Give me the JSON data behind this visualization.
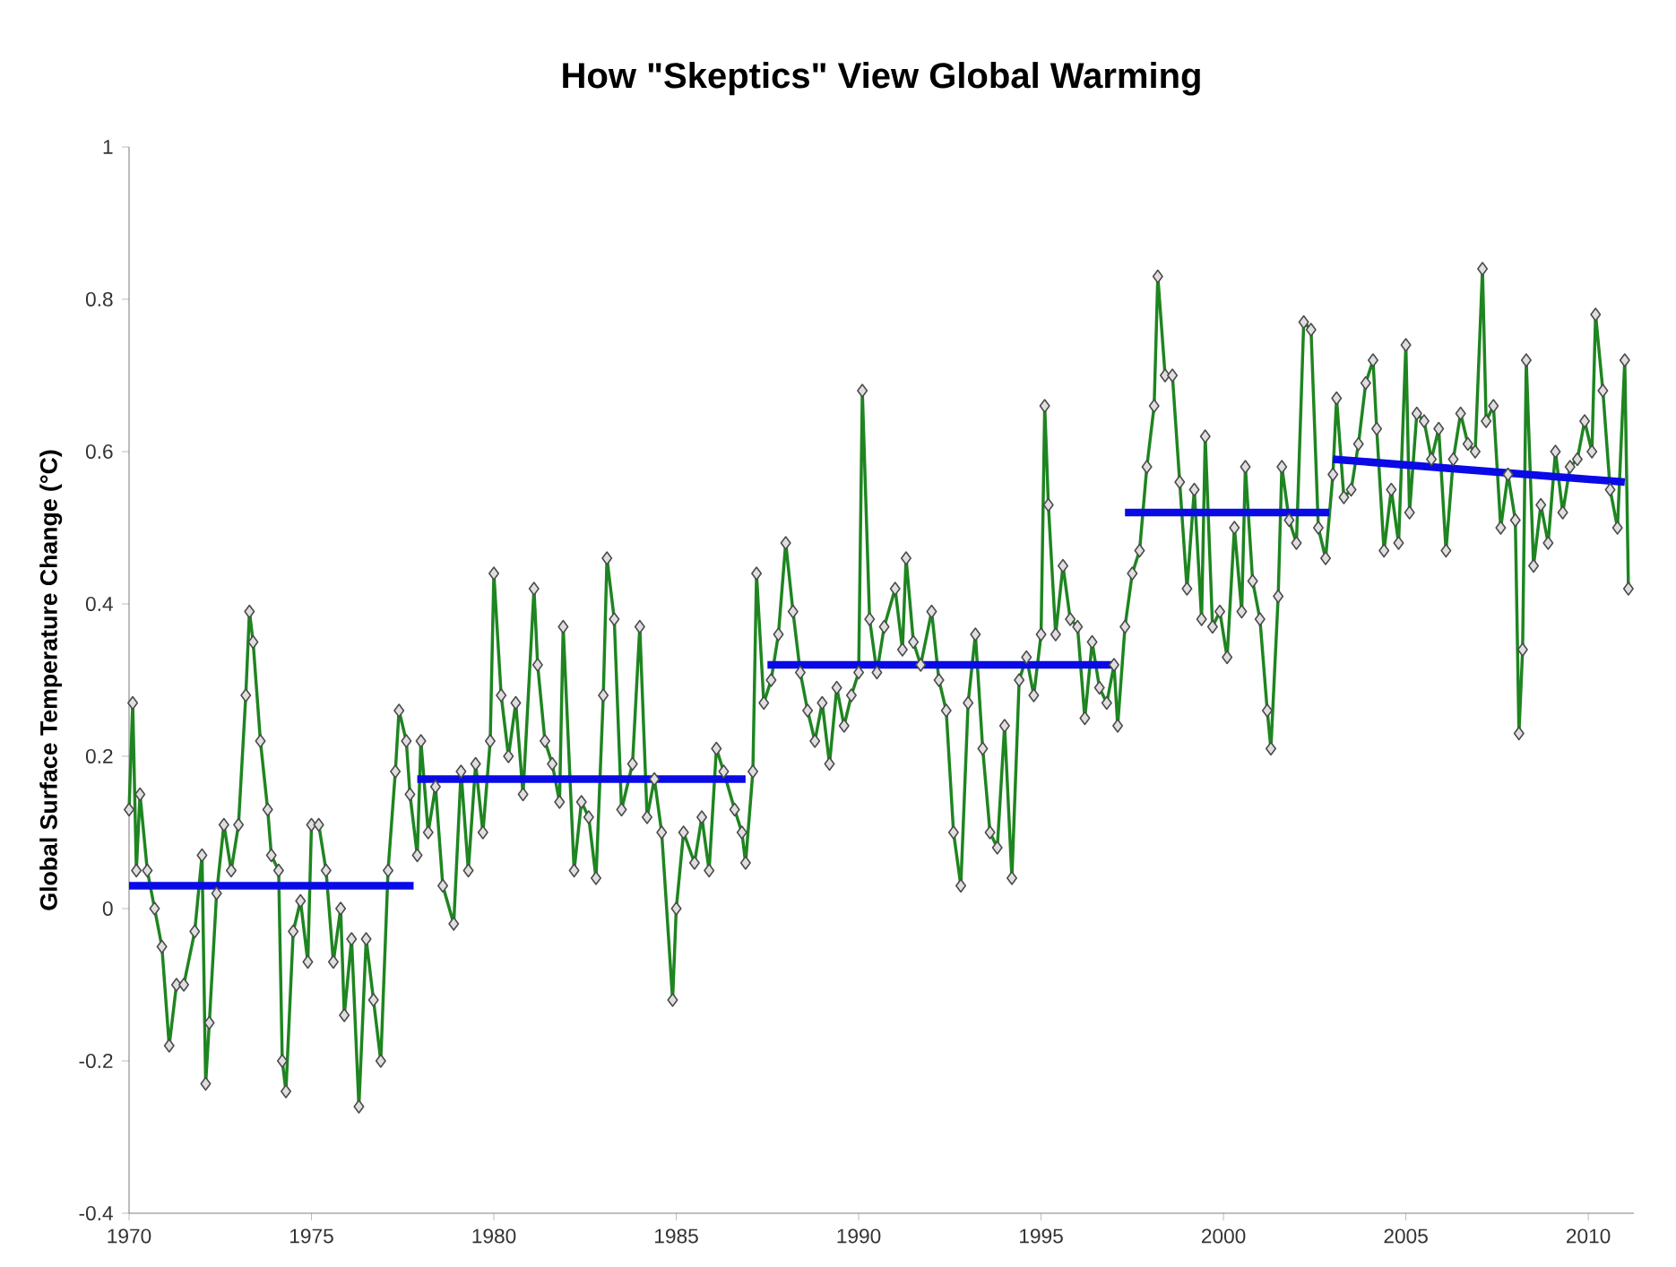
{
  "chart_data": {
    "type": "line",
    "title": "How \"Skeptics\" View Global Warming",
    "ylabel": "Global Surface Temperature Change (°C)",
    "xlim": [
      1970,
      2011.25
    ],
    "xticks": [
      1970,
      1975,
      1980,
      1985,
      1990,
      1995,
      2000,
      2005,
      2010
    ],
    "ylim": [
      -0.4,
      1
    ],
    "yticks": [
      -0.4,
      -0.2,
      0,
      0.2,
      0.4,
      0.6,
      0.8,
      1
    ],
    "series": [
      {
        "color": "#1e8520",
        "marker": "diamond",
        "line_style": "solid",
        "x": [
          1970.0,
          1970.1,
          1970.2,
          1970.3,
          1970.5,
          1970.7,
          1970.9,
          1971.1,
          1971.3,
          1971.5,
          1971.8,
          1972.0,
          1972.1,
          1972.2,
          1972.4,
          1972.6,
          1972.8,
          1973.0,
          1973.2,
          1973.3,
          1973.4,
          1973.6,
          1973.8,
          1973.9,
          1974.1,
          1974.2,
          1974.3,
          1974.5,
          1974.7,
          1974.9,
          1975.0,
          1975.2,
          1975.4,
          1975.6,
          1975.8,
          1975.9,
          1976.1,
          1976.3,
          1976.5,
          1976.7,
          1976.9,
          1977.1,
          1977.3,
          1977.4,
          1977.6,
          1977.7,
          1977.9,
          1978.0,
          1978.2,
          1978.4,
          1978.6,
          1978.9,
          1979.1,
          1979.3,
          1979.5,
          1979.7,
          1979.9,
          1980.0,
          1980.2,
          1980.4,
          1980.6,
          1980.8,
          1981.1,
          1981.2,
          1981.4,
          1981.6,
          1981.8,
          1981.9,
          1982.2,
          1982.4,
          1982.6,
          1982.8,
          1983.0,
          1983.1,
          1983.3,
          1983.5,
          1983.8,
          1984.0,
          1984.2,
          1984.4,
          1984.6,
          1984.9,
          1985.0,
          1985.2,
          1985.5,
          1985.7,
          1985.9,
          1986.1,
          1986.3,
          1986.6,
          1986.8,
          1986.9,
          1987.1,
          1987.2,
          1987.4,
          1987.6,
          1987.8,
          1988.0,
          1988.2,
          1988.4,
          1988.6,
          1988.8,
          1989.0,
          1989.2,
          1989.4,
          1989.6,
          1989.8,
          1990.0,
          1990.1,
          1990.3,
          1990.5,
          1990.7,
          1991.0,
          1991.2,
          1991.3,
          1991.5,
          1991.7,
          1992.0,
          1992.2,
          1992.4,
          1992.6,
          1992.8,
          1993.0,
          1993.2,
          1993.4,
          1993.6,
          1993.8,
          1994.0,
          1994.2,
          1994.4,
          1994.6,
          1994.8,
          1995.0,
          1995.1,
          1995.2,
          1995.4,
          1995.6,
          1995.8,
          1996.0,
          1996.2,
          1996.4,
          1996.6,
          1996.8,
          1997.0,
          1997.1,
          1997.3,
          1997.5,
          1997.7,
          1997.9,
          1998.1,
          1998.2,
          1998.4,
          1998.6,
          1998.8,
          1999.0,
          1999.2,
          1999.4,
          1999.5,
          1999.7,
          1999.9,
          2000.1,
          2000.3,
          2000.5,
          2000.6,
          2000.8,
          2001.0,
          2001.2,
          2001.3,
          2001.5,
          2001.6,
          2001.8,
          2002.0,
          2002.2,
          2002.4,
          2002.6,
          2002.8,
          2003.0,
          2003.1,
          2003.3,
          2003.5,
          2003.7,
          2003.9,
          2004.1,
          2004.2,
          2004.4,
          2004.6,
          2004.8,
          2005.0,
          2005.1,
          2005.3,
          2005.5,
          2005.7,
          2005.9,
          2006.1,
          2006.3,
          2006.5,
          2006.7,
          2006.9,
          2007.1,
          2007.2,
          2007.4,
          2007.6,
          2007.8,
          2008.0,
          2008.1,
          2008.2,
          2008.3,
          2008.5,
          2008.7,
          2008.9,
          2009.1,
          2009.3,
          2009.5,
          2009.7,
          2009.9,
          2010.1,
          2010.2,
          2010.4,
          2010.6,
          2010.8,
          2011.0,
          2011.1
        ],
        "values": [
          0.13,
          0.27,
          0.05,
          0.15,
          0.05,
          0.0,
          -0.05,
          -0.18,
          -0.1,
          -0.1,
          -0.03,
          0.07,
          -0.23,
          -0.15,
          0.02,
          0.11,
          0.05,
          0.11,
          0.28,
          0.39,
          0.35,
          0.22,
          0.13,
          0.07,
          0.05,
          -0.2,
          -0.24,
          -0.03,
          0.01,
          -0.07,
          0.11,
          0.11,
          0.05,
          -0.07,
          0.0,
          -0.14,
          -0.04,
          -0.26,
          -0.04,
          -0.12,
          -0.2,
          0.05,
          0.18,
          0.26,
          0.22,
          0.15,
          0.07,
          0.22,
          0.1,
          0.16,
          0.03,
          -0.02,
          0.18,
          0.05,
          0.19,
          0.1,
          0.22,
          0.44,
          0.28,
          0.2,
          0.27,
          0.15,
          0.42,
          0.32,
          0.22,
          0.19,
          0.14,
          0.37,
          0.05,
          0.14,
          0.12,
          0.04,
          0.28,
          0.46,
          0.38,
          0.13,
          0.19,
          0.37,
          0.12,
          0.17,
          0.1,
          -0.12,
          0.0,
          0.1,
          0.06,
          0.12,
          0.05,
          0.21,
          0.18,
          0.13,
          0.1,
          0.06,
          0.18,
          0.44,
          0.27,
          0.3,
          0.36,
          0.48,
          0.39,
          0.31,
          0.26,
          0.22,
          0.27,
          0.19,
          0.29,
          0.24,
          0.28,
          0.31,
          0.68,
          0.38,
          0.31,
          0.37,
          0.42,
          0.34,
          0.46,
          0.35,
          0.32,
          0.39,
          0.3,
          0.26,
          0.1,
          0.03,
          0.27,
          0.36,
          0.21,
          0.1,
          0.08,
          0.24,
          0.04,
          0.3,
          0.33,
          0.28,
          0.36,
          0.66,
          0.53,
          0.36,
          0.45,
          0.38,
          0.37,
          0.25,
          0.35,
          0.29,
          0.27,
          0.32,
          0.24,
          0.37,
          0.44,
          0.47,
          0.58,
          0.66,
          0.83,
          0.7,
          0.7,
          0.56,
          0.42,
          0.55,
          0.38,
          0.62,
          0.37,
          0.39,
          0.33,
          0.5,
          0.39,
          0.58,
          0.43,
          0.38,
          0.26,
          0.21,
          0.41,
          0.58,
          0.51,
          0.48,
          0.77,
          0.76,
          0.5,
          0.46,
          0.57,
          0.67,
          0.54,
          0.55,
          0.61,
          0.69,
          0.72,
          0.63,
          0.47,
          0.55,
          0.48,
          0.74,
          0.52,
          0.65,
          0.64,
          0.59,
          0.63,
          0.47,
          0.59,
          0.65,
          0.61,
          0.6,
          0.84,
          0.64,
          0.66,
          0.5,
          0.57,
          0.51,
          0.23,
          0.34,
          0.72,
          0.45,
          0.53,
          0.48,
          0.6,
          0.52,
          0.58,
          0.59,
          0.64,
          0.6,
          0.78,
          0.68,
          0.55,
          0.5,
          0.72,
          0.42
        ]
      },
      {
        "color": "#0a0ae6",
        "marker": "none",
        "x": [
          1970.0,
          1977.8
        ],
        "values": [
          0.03,
          0.03
        ]
      },
      {
        "color": "#0a0ae6",
        "marker": "none",
        "x": [
          1977.9,
          1986.9
        ],
        "values": [
          0.17,
          0.17
        ]
      },
      {
        "color": "#0a0ae6",
        "marker": "none",
        "x": [
          1987.5,
          1997.0
        ],
        "values": [
          0.32,
          0.32
        ]
      },
      {
        "color": "#0a0ae6",
        "marker": "none",
        "x": [
          1997.3,
          2002.9
        ],
        "values": [
          0.52,
          0.52
        ]
      },
      {
        "color": "#0a0ae6",
        "marker": "none",
        "x": [
          2003.0,
          2011.0
        ],
        "values": [
          0.59,
          0.56
        ]
      }
    ]
  }
}
